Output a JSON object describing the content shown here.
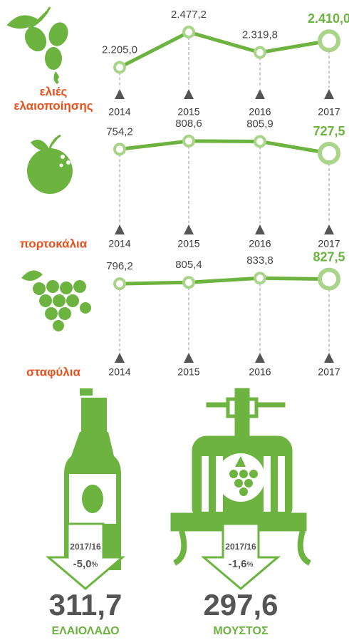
{
  "chart_data": [
    {
      "type": "line",
      "label": "ελιές ελαιοποίησης",
      "color": "#6cb33f",
      "categories": [
        "2014",
        "2015",
        "2016",
        "2017"
      ],
      "values": [
        2205.0,
        2477.2,
        2319.8,
        2410.0
      ],
      "value_labels": [
        "2.205,0",
        "2.477,2",
        "2.319,8",
        "2.410,0"
      ],
      "ylim": [
        2120,
        2560
      ]
    },
    {
      "type": "line",
      "label": "πορτοκάλια",
      "color": "#6cb33f",
      "categories": [
        "2014",
        "2015",
        "2016",
        "2017"
      ],
      "values": [
        754.2,
        808.6,
        805.9,
        727.5
      ],
      "value_labels": [
        "754,2",
        "808,6",
        "805,9",
        "727,5"
      ],
      "ylim": [
        490,
        870
      ]
    },
    {
      "type": "line",
      "label": "σταφύλια",
      "color": "#6cb33f",
      "categories": [
        "2014",
        "2015",
        "2016",
        "2017"
      ],
      "values": [
        796.2,
        805.4,
        833.8,
        827.5
      ],
      "value_labels": [
        "796,2",
        "805,4",
        "833,8",
        "827,5"
      ],
      "ylim": [
        550,
        930
      ]
    }
  ],
  "stats": [
    {
      "period": "2017/16",
      "change": "-5,0",
      "unit": "%",
      "value": "311,7",
      "label": "ΕΛΑΙΟΛΑΔΟ"
    },
    {
      "period": "2017/16",
      "change": "-1,6",
      "unit": "%",
      "value": "297,6",
      "label": "ΜΟΥΣΤΟΣ"
    }
  ]
}
